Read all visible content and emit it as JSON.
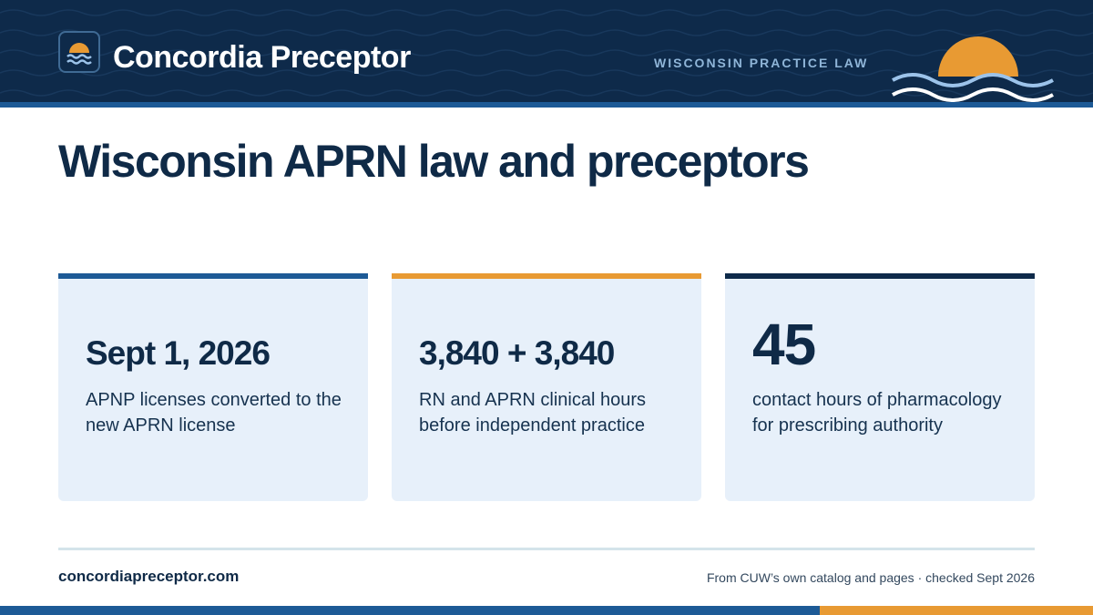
{
  "header": {
    "brand": "Concordia Preceptor",
    "tagline": "WISCONSIN PRACTICE LAW",
    "logo_icon": "sun-over-waves-icon"
  },
  "title": "Wisconsin APRN law and preceptors",
  "cards": [
    {
      "stat": "Sept 1, 2026",
      "description": "APNP licenses converted to the new APRN license",
      "accent": "#1d5a96"
    },
    {
      "stat": "3,840 + 3,840",
      "description": "RN and APRN clinical hours before independent practice",
      "accent": "#e89a33"
    },
    {
      "stat": "45",
      "description": "contact hours of pharmacology for prescribing authority",
      "accent": "#0e2a4a"
    }
  ],
  "footer": {
    "site": "concordiapreceptor.com",
    "source": "From CUW’s own catalog and pages · checked Sept 2026"
  },
  "colors": {
    "navy": "#0e2a4a",
    "blue": "#1d5a96",
    "orange": "#e89a33",
    "card_bg": "#e7f0fa"
  }
}
